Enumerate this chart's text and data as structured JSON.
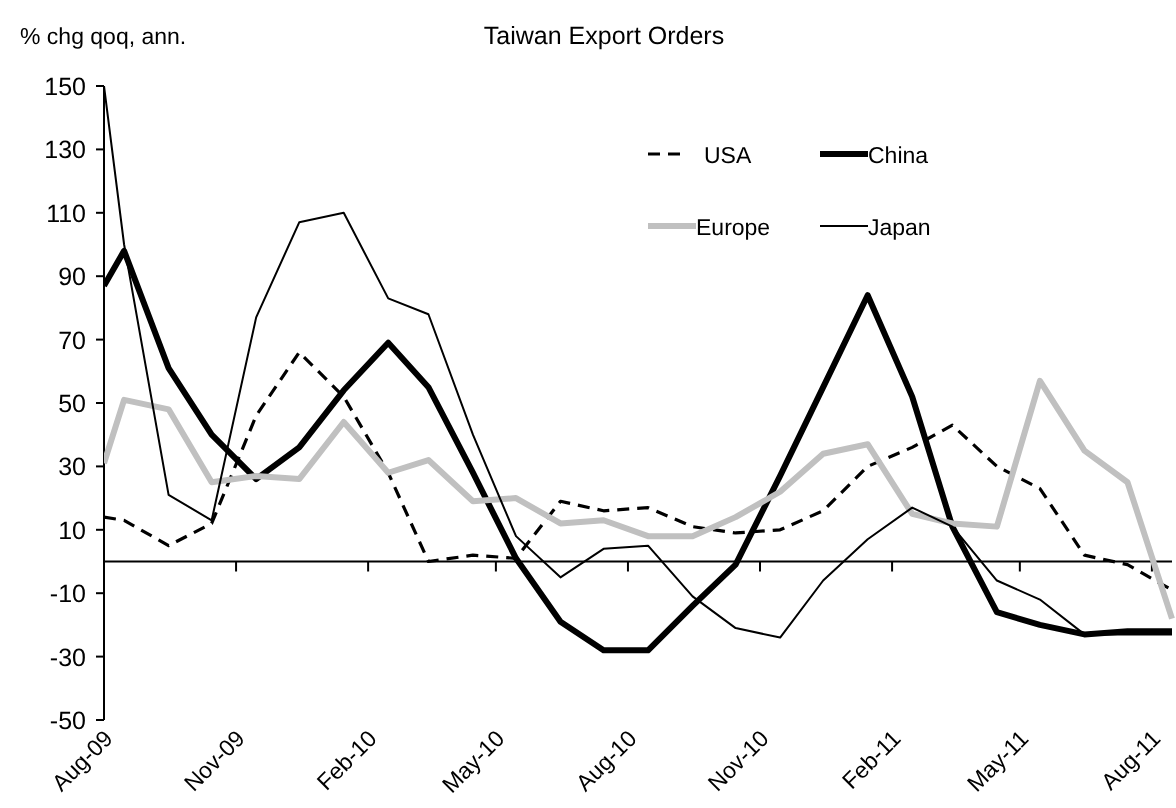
{
  "chart_data": {
    "type": "line",
    "title": "Taiwan Export Orders",
    "ylabel": "% chg qoq, ann.",
    "x": [
      "2009-08-01",
      "2009-08-15",
      "2009-09-15",
      "2009-10-15",
      "2009-11-15",
      "2009-12-15",
      "2010-01-15",
      "2010-02-15",
      "2010-03-15",
      "2010-04-15",
      "2010-05-15",
      "2010-06-15",
      "2010-07-15",
      "2010-08-15",
      "2010-09-15",
      "2010-10-15",
      "2010-11-15",
      "2010-12-15",
      "2011-01-15",
      "2011-02-15",
      "2011-03-15",
      "2011-04-15",
      "2011-05-15",
      "2011-06-15",
      "2011-07-15",
      "2011-08-15"
    ],
    "series": [
      {
        "name": "USA",
        "color": "#000000",
        "line_style": "dashed",
        "values": [
          14,
          13,
          5,
          12,
          46,
          66,
          52,
          28,
          0,
          2,
          1,
          19,
          16,
          17,
          11,
          9,
          10,
          16,
          30,
          36,
          43,
          30,
          23,
          2,
          -1,
          -9
        ]
      },
      {
        "name": "China",
        "color": "#000000",
        "line_style": "solid",
        "values": [
          87,
          98,
          61,
          40,
          26,
          36,
          54,
          69,
          55,
          28,
          1,
          -19,
          -28,
          -28,
          -14,
          -1,
          27,
          55,
          84,
          52,
          11,
          -16,
          -20,
          -23,
          -22,
          -22
        ]
      },
      {
        "name": "Europe",
        "color": "#c0c0c0",
        "line_style": "solid",
        "values": [
          31,
          51,
          48,
          25,
          27,
          26,
          44,
          28,
          32,
          19,
          20,
          12,
          13,
          8,
          8,
          14,
          22,
          34,
          37,
          15,
          12,
          11,
          57,
          35,
          25,
          -18
        ]
      },
      {
        "name": "Japan",
        "color": "#000000",
        "line_style": "solid",
        "values": [
          150,
          100,
          21,
          13,
          77,
          107,
          110,
          83,
          78,
          40,
          8,
          -5,
          4,
          5,
          -11,
          -21,
          -24,
          -6,
          7,
          17,
          11,
          -6,
          -12,
          -23,
          -23,
          -23
        ]
      }
    ],
    "xlim": [
      "2009-08-01",
      "2011-08-15"
    ],
    "xticks": [
      {
        "value": "2009-08-01",
        "label": "Aug-09"
      },
      {
        "value": "2009-11-01",
        "label": "Nov-09"
      },
      {
        "value": "2010-02-01",
        "label": "Feb-10"
      },
      {
        "value": "2010-05-01",
        "label": "May-10"
      },
      {
        "value": "2010-08-01",
        "label": "Aug-10"
      },
      {
        "value": "2010-11-01",
        "label": "Nov-10"
      },
      {
        "value": "2011-02-01",
        "label": "Feb-11"
      },
      {
        "value": "2011-05-01",
        "label": "May-11"
      },
      {
        "value": "2011-08-01",
        "label": "Aug-11"
      }
    ],
    "ylim": [
      -50,
      150
    ],
    "yticks": [
      -50,
      -30,
      -10,
      10,
      30,
      50,
      70,
      90,
      110,
      130,
      150
    ],
    "grid": false,
    "legend": "top right"
  }
}
